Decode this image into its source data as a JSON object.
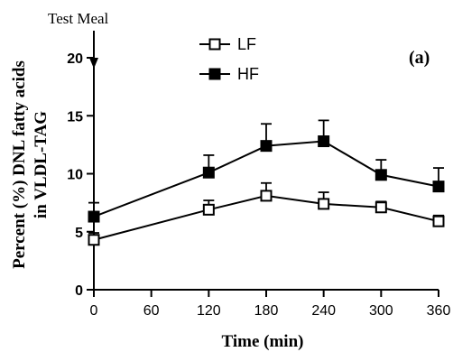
{
  "chart_data": {
    "type": "line",
    "panel_label": "(a)",
    "xlabel": "Time (min)",
    "ylabel_lines": [
      "Percent (%) DNL fatty acids",
      "in VLDL-TAG"
    ],
    "x_ticks": [
      0,
      60,
      120,
      180,
      240,
      300,
      360
    ],
    "y_ticks": [
      0,
      5,
      10,
      15,
      20
    ],
    "xlim": [
      0,
      360
    ],
    "ylim": [
      0,
      20
    ],
    "annotation": {
      "text": "Test Meal",
      "x": 0,
      "y": 20
    },
    "legend_position": "top-center",
    "series": [
      {
        "name": "LF",
        "marker": "open-square",
        "x": [
          0,
          120,
          180,
          240,
          300,
          360
        ],
        "y": [
          4.3,
          6.9,
          8.1,
          7.4,
          7.1,
          5.9
        ],
        "error": [
          0.6,
          0.8,
          1.1,
          1.0,
          0.5,
          0.5
        ]
      },
      {
        "name": "HF",
        "marker": "filled-square",
        "x": [
          0,
          120,
          180,
          240,
          300,
          360
        ],
        "y": [
          6.3,
          10.1,
          12.4,
          12.8,
          9.9,
          8.9
        ],
        "error": [
          1.2,
          1.5,
          1.9,
          1.8,
          1.3,
          1.6
        ]
      }
    ]
  }
}
